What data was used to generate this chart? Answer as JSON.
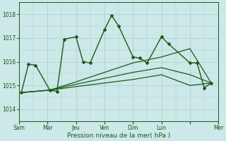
{
  "title": "",
  "xlabel": "Pression niveau de la mer( hPa )",
  "background_color": "#cce8e8",
  "grid_color": "#aacccc",
  "line_color": "#1a5a1a",
  "ylim": [
    1013.5,
    1018.5
  ],
  "yticks": [
    1014,
    1015,
    1016,
    1017,
    1018
  ],
  "xlim": [
    0,
    336
  ],
  "day_positions": [
    0,
    48,
    96,
    144,
    192,
    240,
    288,
    336
  ],
  "day_labels": [
    "Sam",
    "Mar",
    "Jeu",
    "Ven",
    "Dim",
    "Lun",
    "",
    "Mer"
  ],
  "series": [
    {
      "x": [
        4,
        16,
        28,
        52,
        64,
        76,
        96,
        108,
        120,
        144,
        156,
        168,
        192,
        204,
        216,
        240,
        252,
        288,
        300,
        312,
        324
      ],
      "y": [
        1014.7,
        1015.9,
        1015.85,
        1014.8,
        1014.75,
        1016.95,
        1017.05,
        1016.0,
        1015.95,
        1017.35,
        1017.95,
        1017.5,
        1016.2,
        1016.15,
        1015.95,
        1017.05,
        1016.75,
        1015.95,
        1015.95,
        1014.9,
        1015.1
      ],
      "marker": "D",
      "markersize": 2.0,
      "linewidth": 1.0
    },
    {
      "x": [
        4,
        52,
        96,
        144,
        192,
        240,
        288,
        324
      ],
      "y": [
        1014.7,
        1014.8,
        1014.95,
        1015.1,
        1015.25,
        1015.45,
        1015.0,
        1015.1
      ],
      "marker": null,
      "linewidth": 0.9
    },
    {
      "x": [
        4,
        52,
        96,
        144,
        192,
        240,
        288,
        324
      ],
      "y": [
        1014.7,
        1014.8,
        1015.05,
        1015.3,
        1015.55,
        1015.75,
        1015.45,
        1015.1
      ],
      "marker": null,
      "linewidth": 0.9
    },
    {
      "x": [
        4,
        52,
        96,
        144,
        192,
        240,
        288,
        324
      ],
      "y": [
        1014.7,
        1014.8,
        1015.15,
        1015.55,
        1015.95,
        1016.2,
        1016.55,
        1015.1
      ],
      "marker": null,
      "linewidth": 0.9
    }
  ]
}
